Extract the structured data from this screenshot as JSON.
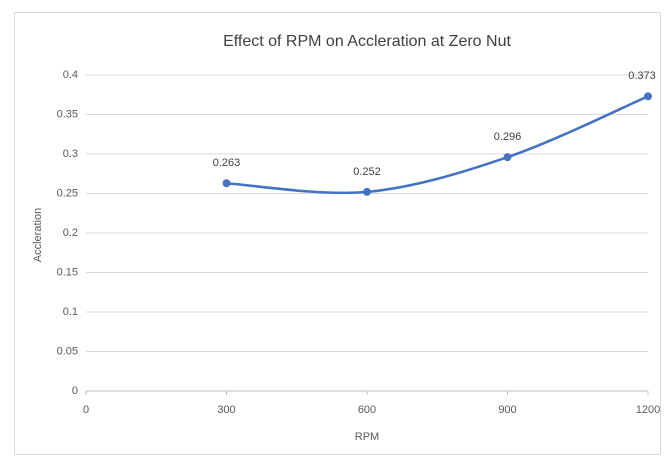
{
  "chart_data": {
    "type": "line",
    "title": "Effect of RPM on Accleration at Zero Nut",
    "xlabel": "RPM",
    "ylabel": "Accleration",
    "x": [
      300,
      600,
      900,
      1200
    ],
    "series": [
      {
        "name": "Accleration",
        "color": "#4472c4",
        "values": [
          0.263,
          0.252,
          0.296,
          0.373
        ]
      }
    ],
    "smooth": true,
    "markers": true,
    "data_labels": true,
    "xlim": [
      0,
      1200
    ],
    "xticks": [
      0,
      300,
      600,
      900,
      1200
    ],
    "ylim": [
      0,
      0.4
    ],
    "yticks": [
      0,
      0.05,
      0.1,
      0.15,
      0.2,
      0.25,
      0.3,
      0.35,
      0.4
    ],
    "grid": true
  }
}
